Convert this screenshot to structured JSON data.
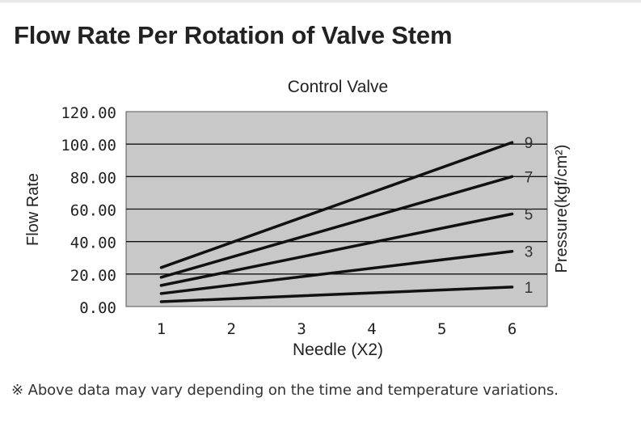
{
  "page": {
    "title": "Flow Rate Per Rotation of Valve Stem",
    "footnote": "※ Above data may vary depending on the time and temperature variations."
  },
  "colors": {
    "plot_background": "#c8c8c8",
    "line": "#111111",
    "grid": "#111111",
    "text": "#222222"
  },
  "chart_data": {
    "type": "line",
    "title": "Control Valve",
    "xlabel": "Needle (X2)",
    "ylabel": "Flow Rate",
    "y2label": "Pressure(kgf/cm²)",
    "x": [
      1,
      6
    ],
    "xlim": [
      0.5,
      6.5
    ],
    "ylim": [
      0,
      120
    ],
    "x_ticks": [
      "1",
      "2",
      "3",
      "4",
      "5",
      "6"
    ],
    "y_ticks": [
      "0.00",
      "20.00",
      "40.00",
      "60.00",
      "80.00",
      "100.00",
      "120.00"
    ],
    "y_tick_values": [
      0,
      20,
      40,
      60,
      80,
      100,
      120
    ],
    "grid": "horizontal",
    "series": [
      {
        "name": "1",
        "values": [
          3,
          12
        ]
      },
      {
        "name": "3",
        "values": [
          8,
          34
        ]
      },
      {
        "name": "5",
        "values": [
          13,
          57
        ]
      },
      {
        "name": "7",
        "values": [
          18,
          80
        ]
      },
      {
        "name": "9",
        "values": [
          24,
          101
        ]
      }
    ]
  }
}
